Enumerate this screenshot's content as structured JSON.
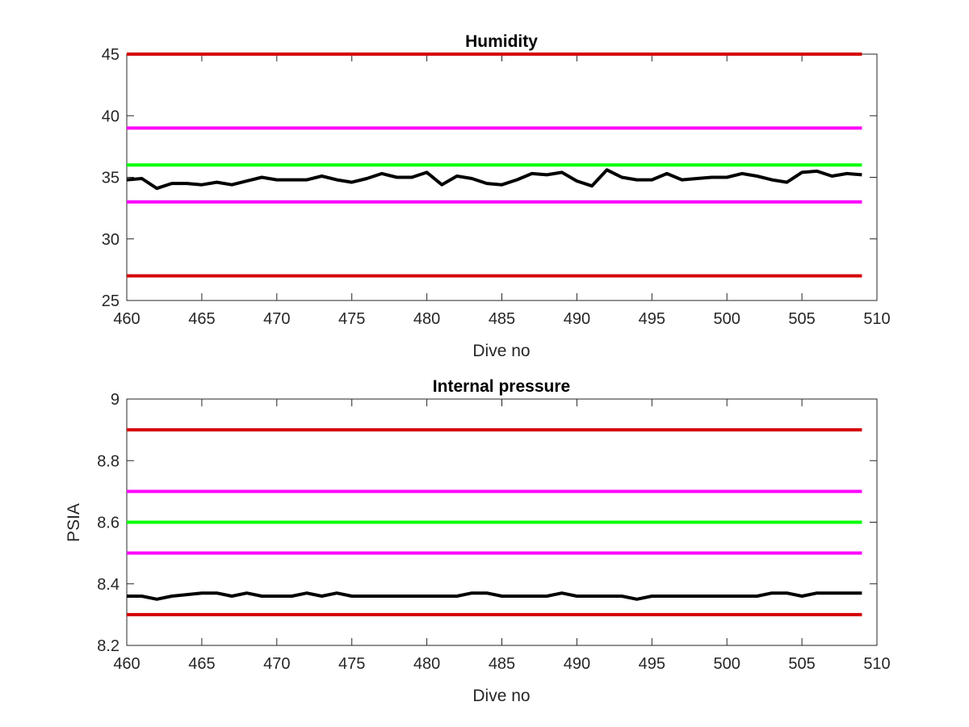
{
  "chart_data": [
    {
      "type": "line",
      "title": "Humidity",
      "xlabel": "Dive no",
      "ylabel": "",
      "xlim": [
        460,
        510
      ],
      "ylim": [
        25,
        45
      ],
      "x_ticks": [
        "460",
        "465",
        "470",
        "475",
        "480",
        "485",
        "490",
        "495",
        "500",
        "505",
        "510"
      ],
      "y_ticks": [
        "25",
        "30",
        "35",
        "40",
        "45"
      ],
      "x_range": [
        460,
        509
      ],
      "grid": false,
      "legend": "none",
      "thresholds": [
        {
          "value": 45,
          "color": "#d40000"
        },
        {
          "value": 39,
          "color": "#ff00ff"
        },
        {
          "value": 36,
          "color": "#00ff00"
        },
        {
          "value": 33,
          "color": "#ff00ff"
        },
        {
          "value": 27,
          "color": "#d40000"
        }
      ],
      "series": [
        {
          "color": "#000000",
          "x": [
            460,
            461,
            462,
            463,
            464,
            465,
            466,
            467,
            468,
            469,
            470,
            471,
            472,
            473,
            474,
            475,
            476,
            477,
            478,
            479,
            480,
            481,
            482,
            483,
            484,
            485,
            486,
            487,
            488,
            489,
            490,
            491,
            492,
            493,
            494,
            495,
            496,
            497,
            498,
            499,
            500,
            501,
            502,
            503,
            504,
            505,
            506,
            507,
            508,
            509
          ],
          "values": [
            34.8,
            34.9,
            34.1,
            34.5,
            34.5,
            34.4,
            34.6,
            34.4,
            34.7,
            35.0,
            34.8,
            34.8,
            34.8,
            35.1,
            34.8,
            34.6,
            34.9,
            35.3,
            35.0,
            35.0,
            35.4,
            34.4,
            35.1,
            34.9,
            34.5,
            34.4,
            34.8,
            35.3,
            35.2,
            35.4,
            34.7,
            34.3,
            35.6,
            35.0,
            34.8,
            34.8,
            35.3,
            34.8,
            34.9,
            35.0,
            35.0,
            35.3,
            35.1,
            34.8,
            34.6,
            35.4,
            35.5,
            35.1,
            35.3,
            35.2
          ]
        }
      ]
    },
    {
      "type": "line",
      "title": "Internal pressure",
      "xlabel": "Dive no",
      "ylabel": "PSIA",
      "xlim": [
        460,
        510
      ],
      "ylim": [
        8.2,
        9
      ],
      "x_ticks": [
        "460",
        "465",
        "470",
        "475",
        "480",
        "485",
        "490",
        "495",
        "500",
        "505",
        "510"
      ],
      "y_ticks": [
        "8.2",
        "8.4",
        "8.6",
        "8.8",
        "9"
      ],
      "x_range": [
        460,
        509
      ],
      "grid": false,
      "legend": "none",
      "thresholds": [
        {
          "value": 8.9,
          "color": "#d40000"
        },
        {
          "value": 8.7,
          "color": "#ff00ff"
        },
        {
          "value": 8.6,
          "color": "#00ff00"
        },
        {
          "value": 8.5,
          "color": "#ff00ff"
        },
        {
          "value": 8.3,
          "color": "#d40000"
        }
      ],
      "series": [
        {
          "color": "#000000",
          "x": [
            460,
            461,
            462,
            463,
            464,
            465,
            466,
            467,
            468,
            469,
            470,
            471,
            472,
            473,
            474,
            475,
            476,
            477,
            478,
            479,
            480,
            481,
            482,
            483,
            484,
            485,
            486,
            487,
            488,
            489,
            490,
            491,
            492,
            493,
            494,
            495,
            496,
            497,
            498,
            499,
            500,
            501,
            502,
            503,
            504,
            505,
            506,
            507,
            508,
            509
          ],
          "values": [
            8.36,
            8.36,
            8.35,
            8.36,
            8.365,
            8.37,
            8.37,
            8.36,
            8.37,
            8.36,
            8.36,
            8.36,
            8.37,
            8.36,
            8.37,
            8.36,
            8.36,
            8.36,
            8.36,
            8.36,
            8.36,
            8.36,
            8.36,
            8.37,
            8.37,
            8.36,
            8.36,
            8.36,
            8.36,
            8.37,
            8.36,
            8.36,
            8.36,
            8.36,
            8.35,
            8.36,
            8.36,
            8.36,
            8.36,
            8.36,
            8.36,
            8.36,
            8.36,
            8.37,
            8.37,
            8.36,
            8.37,
            8.37,
            8.37,
            8.37
          ]
        }
      ]
    }
  ]
}
